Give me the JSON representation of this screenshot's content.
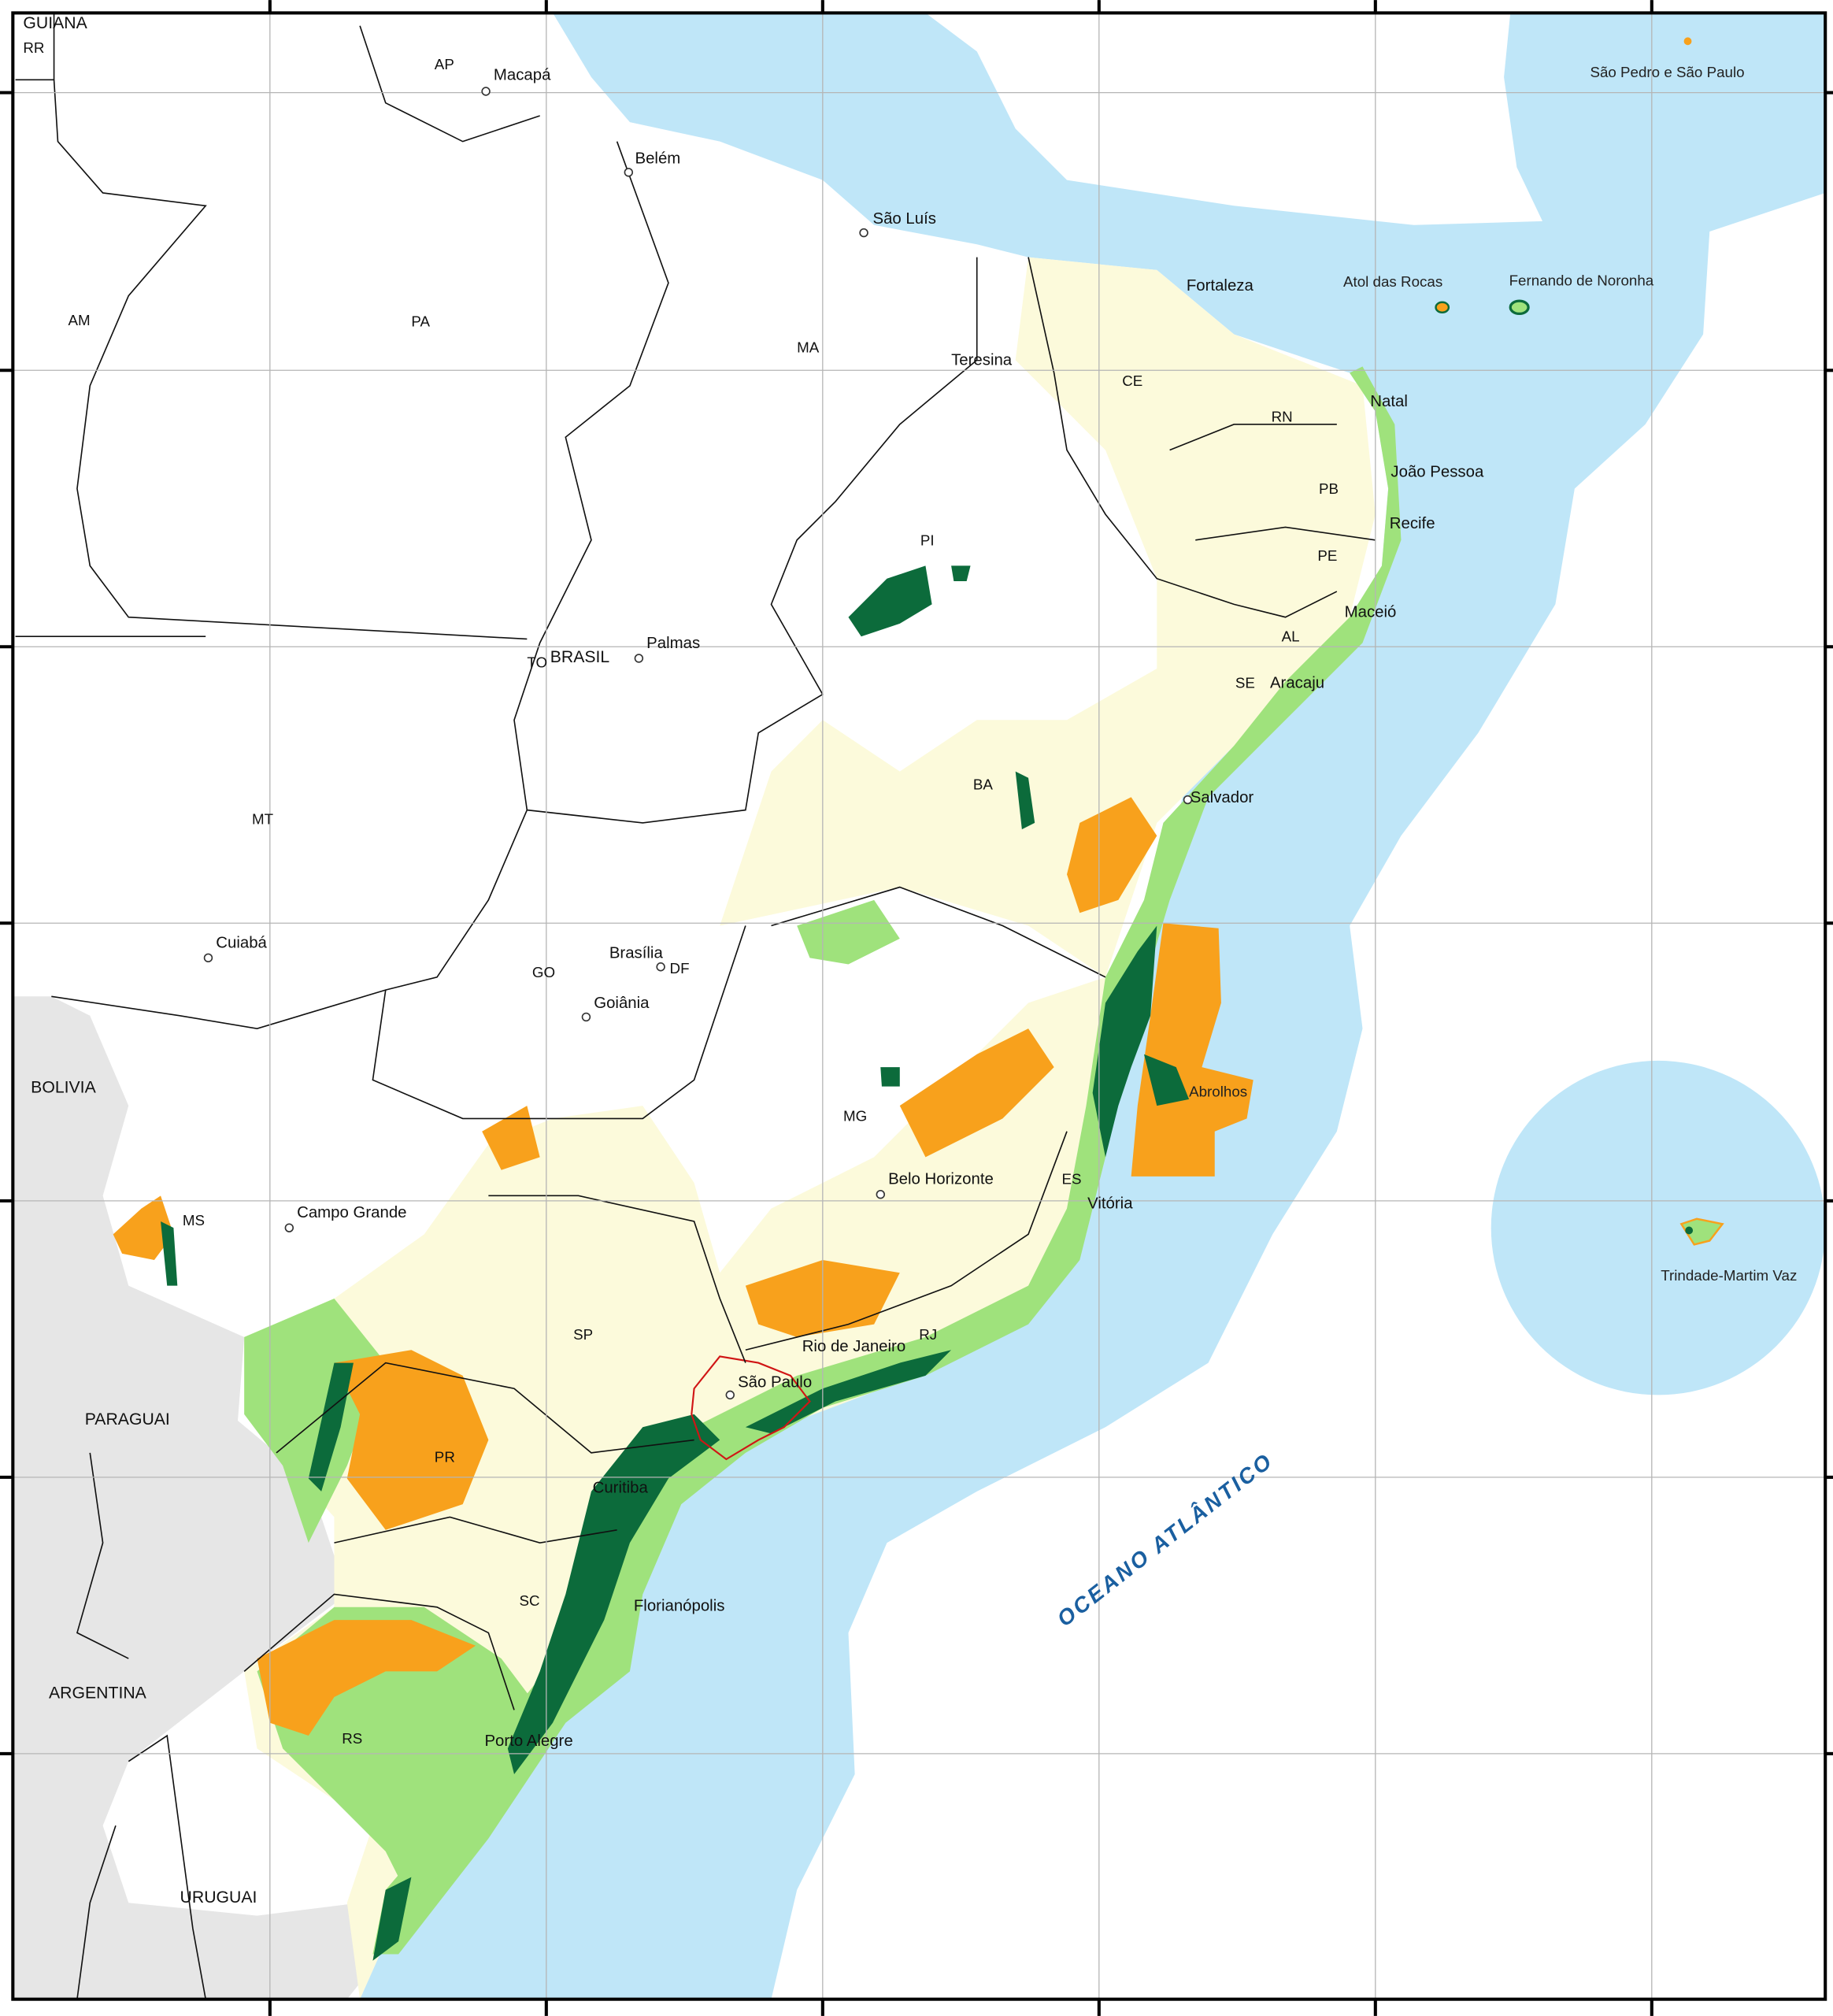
{
  "map": {
    "colors": {
      "ocean": "#bfe6f8",
      "land": "#ffffff",
      "neighbor_countries": "#e6e6e6",
      "pale_yellow_area": "#fcfadb",
      "light_green_area": "#9fe27c",
      "orange_area": "#f8a11c",
      "dark_green_area": "#0c6b3b",
      "sao_paulo_outline": "#d01515",
      "ocean_label": "#1a5fa0"
    },
    "countries": [
      "GUIANA",
      "BRASIL",
      "BOLIVIA",
      "PARAGUAI",
      "ARGENTINA",
      "URUGUAI"
    ],
    "states": [
      "RR",
      "AP",
      "AM",
      "PA",
      "MA",
      "CE",
      "RN",
      "PB",
      "PI",
      "PE",
      "AL",
      "SE",
      "TO",
      "BA",
      "MT",
      "GO",
      "DF",
      "MG",
      "ES",
      "MS",
      "SP",
      "RJ",
      "PR",
      "SC",
      "RS"
    ],
    "cities": [
      "Macapá",
      "Belém",
      "São Luís",
      "Fortaleza",
      "Teresina",
      "Natal",
      "João Pessoa",
      "Recife",
      "Maceió",
      "Aracaju",
      "Salvador",
      "Palmas",
      "Brasília",
      "Goiânia",
      "Cuiabá",
      "Campo Grande",
      "Belo Horizonte",
      "Vitória",
      "Rio de Janeiro",
      "São Paulo",
      "Curitiba",
      "Florianópolis",
      "Porto Alegre"
    ],
    "islands": [
      "São Pedro e São Paulo",
      "Atol das Rocas",
      "Fernando de Noronha",
      "Abrolhos",
      "Trindade-Martim Vaz"
    ],
    "ocean_label": "OCEANO ATLÂNTICO"
  }
}
